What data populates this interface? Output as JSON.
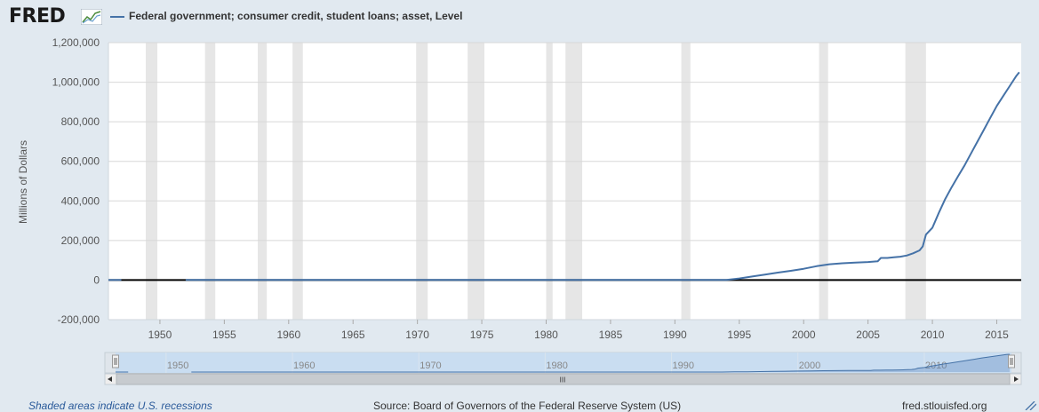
{
  "brand": {
    "logo_text": "FRED",
    "logo_icon": "line-graph-icon"
  },
  "legend": {
    "series_name": "Federal government; consumer credit, student loans; asset, Level",
    "color": "#4572a7"
  },
  "footer": {
    "recession_note": "Shaded areas indicate U.S. recessions",
    "source": "Source: Board of Governors of the Federal Reserve System (US)",
    "site": "fred.stlouisfed.org"
  },
  "navigator": {
    "labels": [
      "1950",
      "1960",
      "1970",
      "1980",
      "1990",
      "2000",
      "2010"
    ],
    "scroll_grip": "III"
  },
  "chart_data": {
    "type": "line",
    "ylabel": "Millions of Dollars",
    "ylim": [
      -200000,
      1200000
    ],
    "xlim": [
      1946.0,
      2016.9
    ],
    "yticks": [
      -200000,
      0,
      200000,
      400000,
      600000,
      800000,
      1000000,
      1200000
    ],
    "yticklabels": [
      "-200,000",
      "0",
      "200,000",
      "400,000",
      "600,000",
      "800,000",
      "1,000,000",
      "1,200,000"
    ],
    "xticks": [
      1950,
      1955,
      1960,
      1965,
      1970,
      1975,
      1980,
      1985,
      1990,
      1995,
      2000,
      2005,
      2010,
      2015
    ],
    "grid": true,
    "legend_position": "top-left",
    "recessions": [
      [
        1948.9,
        1949.8
      ],
      [
        1953.5,
        1954.3
      ],
      [
        1957.6,
        1958.3
      ],
      [
        1960.3,
        1961.1
      ],
      [
        1969.9,
        1970.8
      ],
      [
        1973.9,
        1975.2
      ],
      [
        1980.0,
        1980.5
      ],
      [
        1981.5,
        1982.8
      ],
      [
        1990.5,
        1991.2
      ],
      [
        2001.2,
        2001.9
      ],
      [
        2007.9,
        2009.5
      ]
    ],
    "series": [
      {
        "name": "Federal government; consumer credit, student loans; asset, Level",
        "color": "#4572a7",
        "segments": [
          {
            "x": [
              1946.0,
              1947.0
            ],
            "y": [
              500,
              500
            ]
          },
          {
            "x": [
              1952.0,
              1960.0,
              1970.0,
              1980.0,
              1990.0,
              1994.0,
              1995.0,
              1996.0,
              1997.0,
              1998.0,
              1999.0,
              2000.0,
              2001.0,
              2002.0,
              2003.0,
              2004.0,
              2005.0,
              2005.75,
              2006.0,
              2006.5,
              2007.0,
              2007.5,
              2008.0,
              2008.5,
              2009.0,
              2009.25,
              2009.5,
              2010.0,
              2010.5,
              2011.0,
              2011.5,
              2012.0,
              2012.5,
              2013.0,
              2013.5,
              2014.0,
              2014.5,
              2015.0,
              2015.5,
              2016.0,
              2016.5,
              2016.75
            ],
            "y": [
              500,
              500,
              500,
              500,
              500,
              500,
              8000,
              18000,
              28000,
              38000,
              47000,
              57000,
              70000,
              80000,
              85000,
              88000,
              91000,
              95000,
              112000,
              112000,
              115000,
              118000,
              124000,
              135000,
              150000,
              170000,
              230000,
              265000,
              340000,
              410000,
              470000,
              525000,
              580000,
              640000,
              700000,
              760000,
              820000,
              880000,
              930000,
              980000,
              1030000,
              1050000
            ]
          }
        ]
      }
    ]
  }
}
